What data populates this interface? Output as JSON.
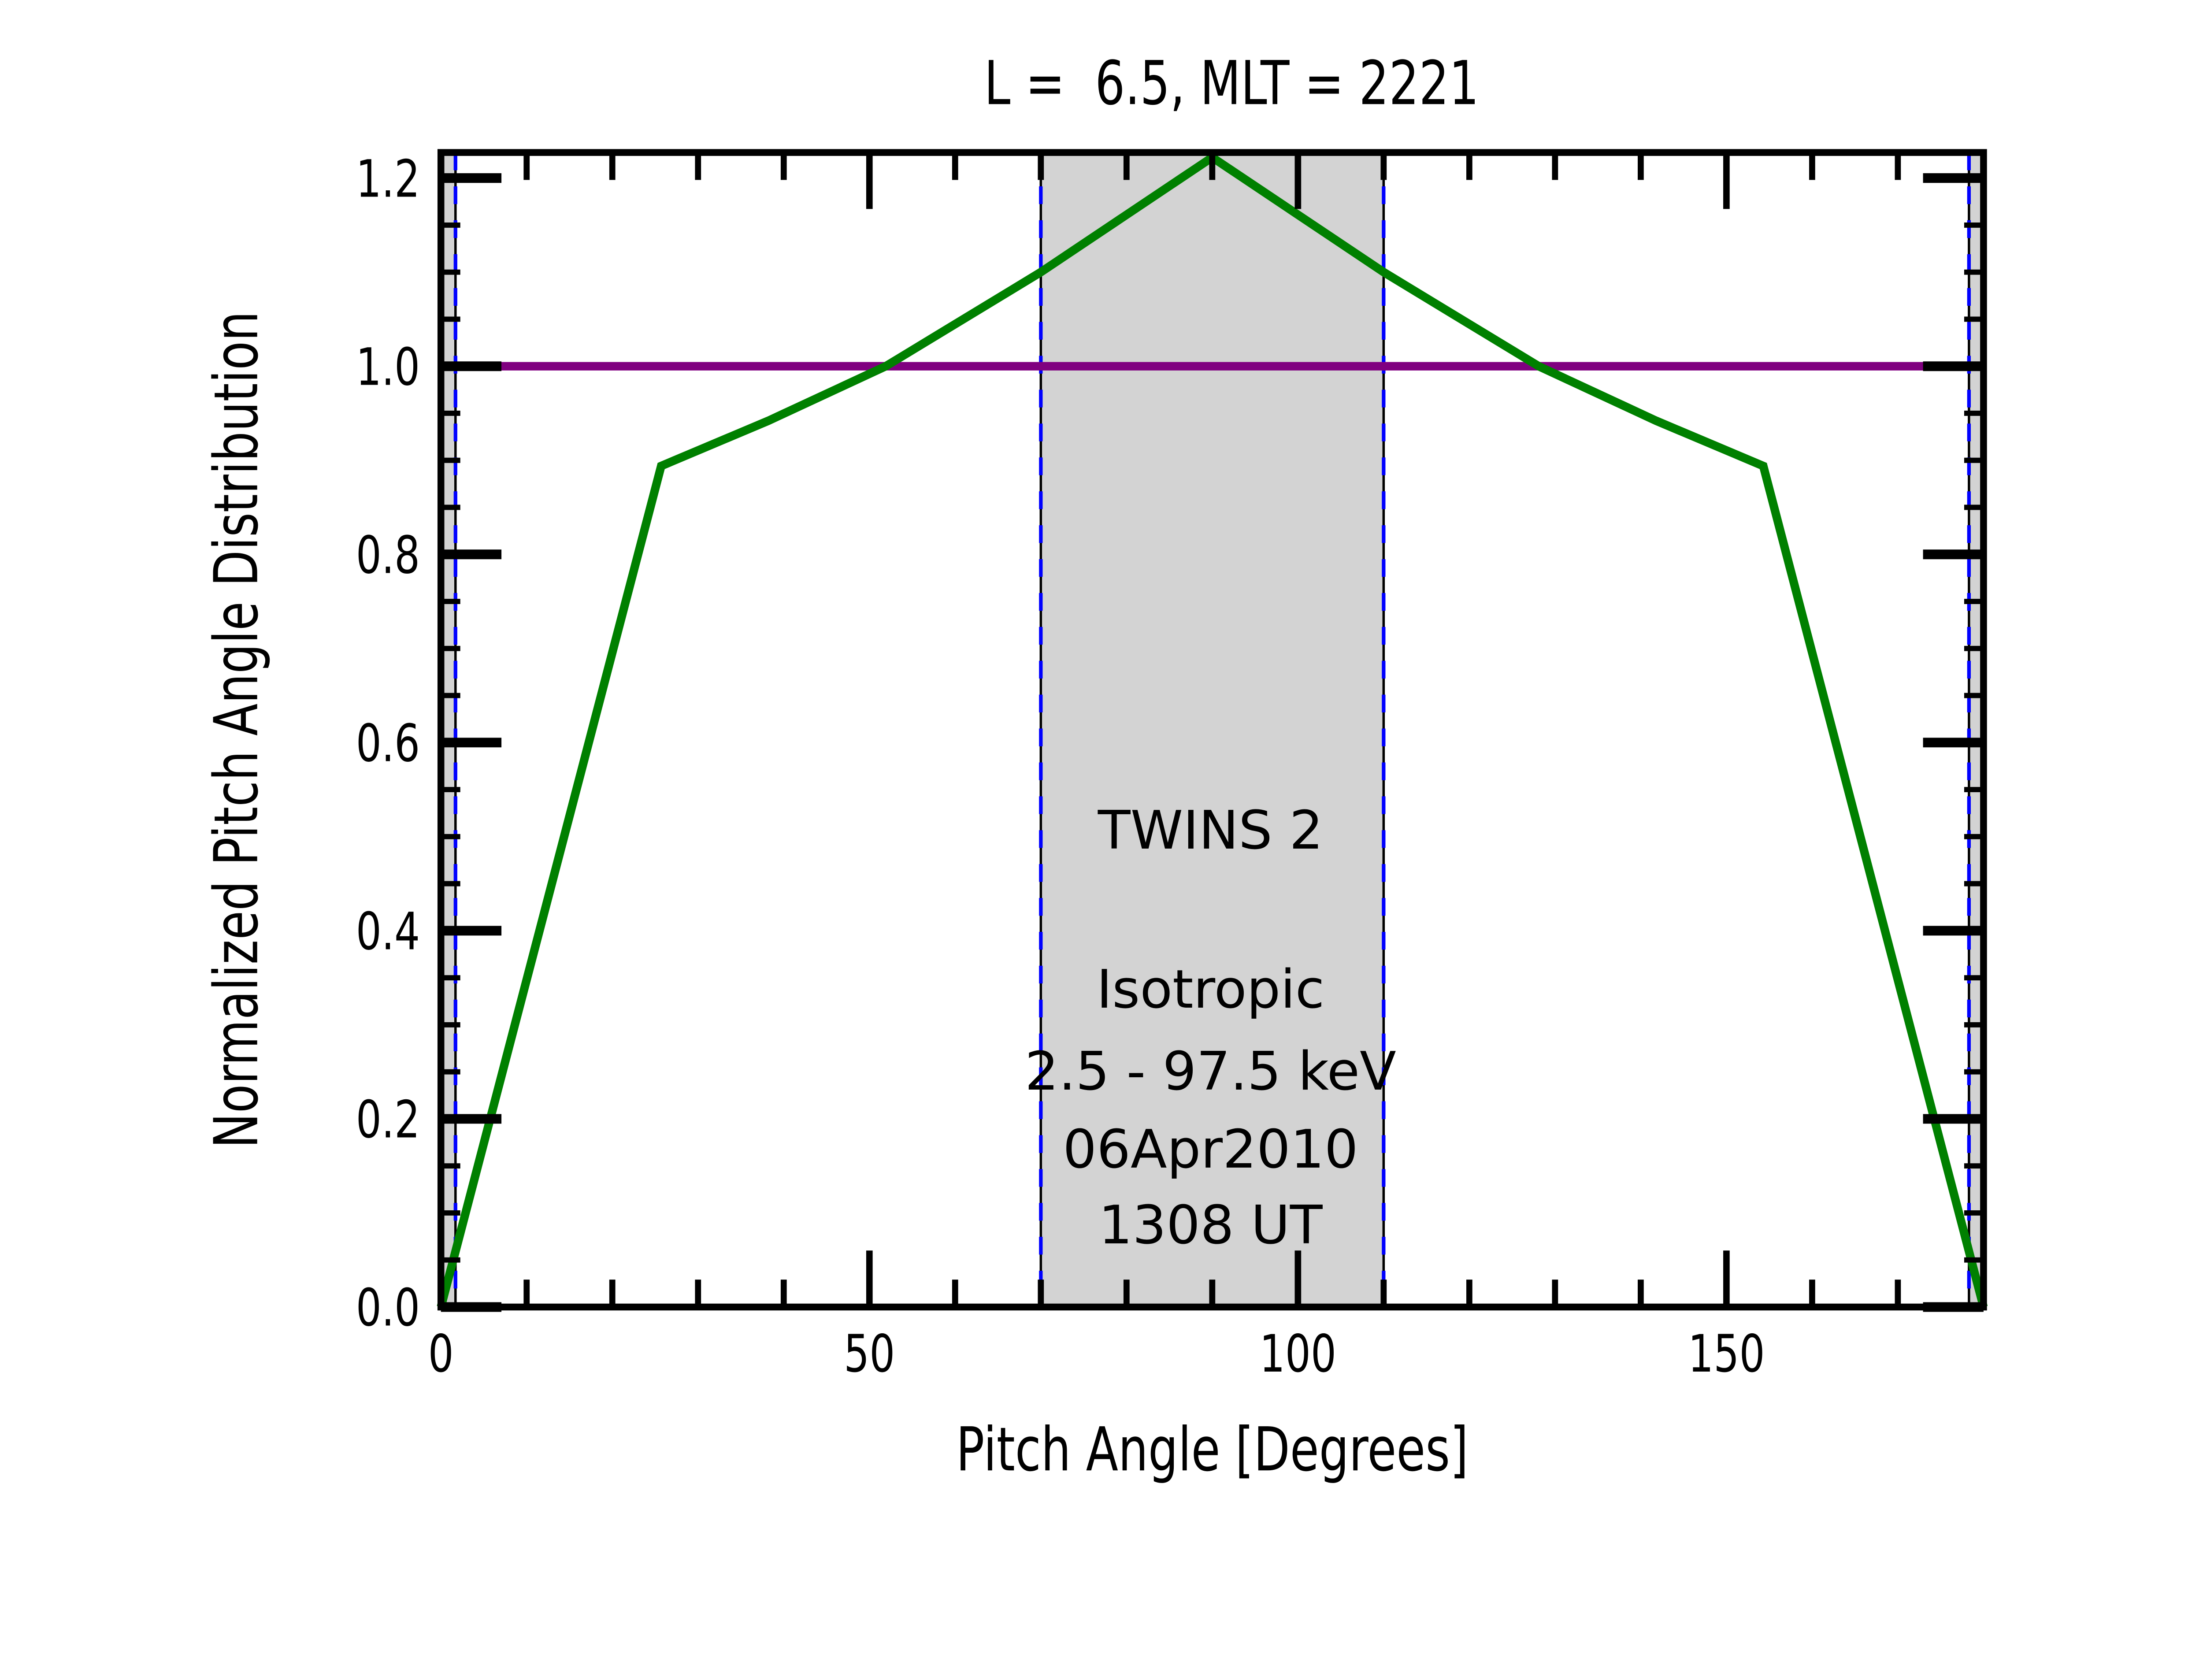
{
  "chart_data": {
    "type": "line",
    "title": "L =  6.5, MLT = 2221",
    "xlabel": "Pitch Angle [Degrees]",
    "ylabel": "Normalized Pitch Angle Distribution",
    "xlim": [
      0,
      180
    ],
    "ylim": [
      0,
      1.2272
    ],
    "grid": false,
    "x_major_ticks": {
      "values": [
        0,
        50,
        100,
        150
      ],
      "labels": [
        "0",
        "50",
        "100",
        "150"
      ]
    },
    "x_minor_ticks": [
      10,
      20,
      30,
      40,
      60,
      70,
      80,
      90,
      110,
      120,
      130,
      140,
      160,
      170
    ],
    "y_major_ticks": {
      "values": [
        0,
        0.2,
        0.4,
        0.6,
        0.8,
        1.0,
        1.2
      ],
      "labels": [
        "0.0",
        "0.2",
        "0.4",
        "0.6",
        "0.8",
        "1.0",
        "1.2"
      ]
    },
    "y_minor_step": 0.05,
    "shade_color": "#d3d3d3",
    "edge_line_color": "#0000ff",
    "edge_line_style": "dashed",
    "shaded_regions": [
      {
        "x0": 0,
        "x1": 1.7
      },
      {
        "x0": 70,
        "x1": 110
      },
      {
        "x0": 178.3,
        "x1": 180
      }
    ],
    "edge_lines": [
      1.7,
      70,
      110,
      178.3
    ],
    "series": [
      {
        "name": "Isotropic",
        "color": "#800080",
        "points": [
          [
            0,
            1.0
          ],
          [
            180,
            1.0
          ]
        ]
      },
      {
        "name": "TWINS 2",
        "color": "#008000",
        "points": [
          [
            0,
            0.0
          ],
          [
            25.7,
            0.894
          ],
          [
            38.2,
            0.942
          ],
          [
            51.9,
            1.0
          ],
          [
            70,
            1.1
          ],
          [
            90,
            1.222
          ],
          [
            110,
            1.1
          ],
          [
            128.1,
            1.0
          ],
          [
            141.8,
            0.942
          ],
          [
            154.3,
            0.894
          ],
          [
            180,
            0.0
          ]
        ]
      }
    ],
    "annotations": [
      {
        "text": "TWINS 2",
        "color": "#008000",
        "x": 89.8,
        "y": 0.507
      },
      {
        "text": "Isotropic",
        "color": "#800080",
        "x": 89.8,
        "y": 0.338
      },
      {
        "text": "2.5 - 97.5 keV",
        "color": "#000000",
        "x": 89.8,
        "y": 0.251
      },
      {
        "text": "06Apr2010",
        "color": "#000000",
        "x": 89.8,
        "y": 0.168
      },
      {
        "text": "1308 UT",
        "color": "#000000",
        "x": 89.8,
        "y": 0.0875
      }
    ]
  }
}
